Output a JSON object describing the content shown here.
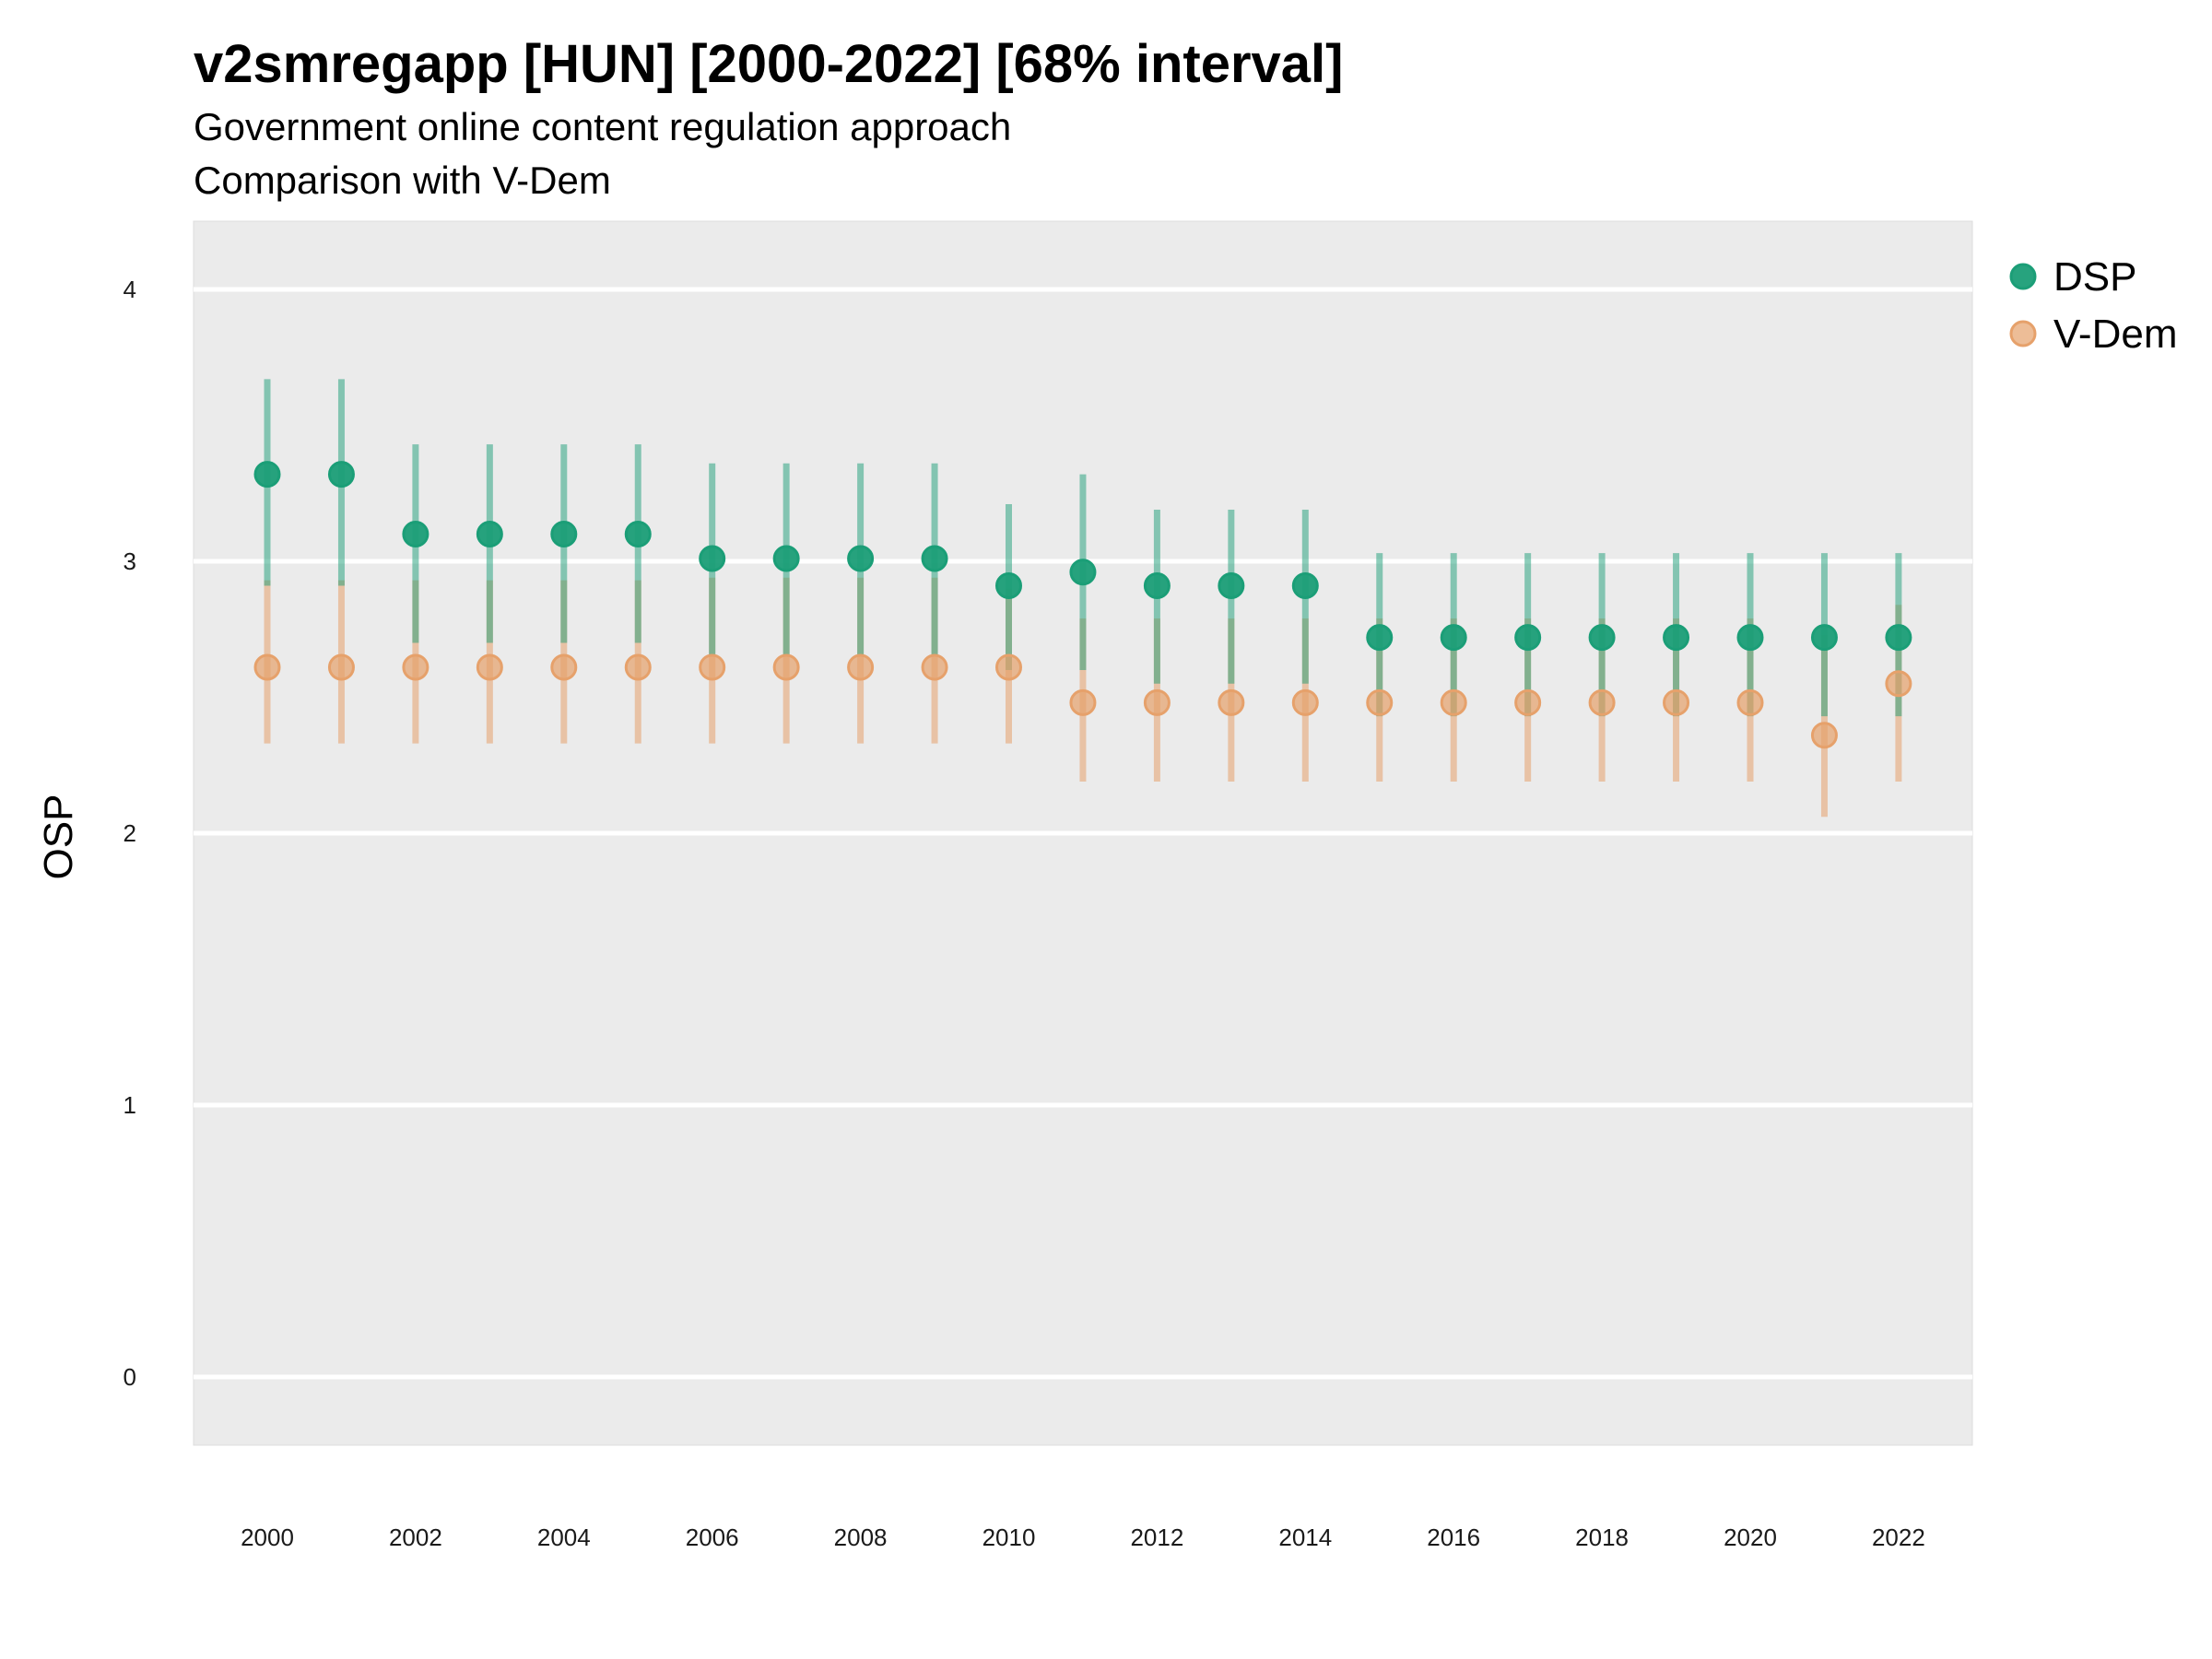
{
  "chart_data": {
    "type": "scatter",
    "title": "v2smregapp [HUN] [2000-2022] [68% interval]",
    "subtitle": "Government online content regulation approach",
    "subtitle2": "Comparison with V-Dem",
    "xlabel": "",
    "ylabel": "OSP",
    "ylim": [
      -0.25,
      4.25
    ],
    "yticks": [
      0,
      1,
      2,
      3,
      4
    ],
    "xticks": [
      2000,
      2002,
      2004,
      2006,
      2008,
      2010,
      2012,
      2014,
      2016,
      2018,
      2020,
      2022
    ],
    "grid": true,
    "legend_position": "right",
    "x": [
      2000,
      2001,
      2002,
      2003,
      2004,
      2005,
      2006,
      2007,
      2008,
      2009,
      2010,
      2011,
      2012,
      2013,
      2014,
      2015,
      2016,
      2017,
      2018,
      2019,
      2020,
      2021,
      2022
    ],
    "series": [
      {
        "name": "DSP",
        "color": "#1b9e77",
        "values": [
          3.32,
          3.32,
          3.1,
          3.1,
          3.1,
          3.1,
          3.01,
          3.01,
          3.01,
          3.01,
          2.91,
          2.96,
          2.91,
          2.91,
          2.91,
          2.72,
          2.72,
          2.72,
          2.72,
          2.72,
          2.72,
          2.72,
          2.72
        ],
        "lower": [
          2.91,
          2.91,
          2.7,
          2.7,
          2.7,
          2.7,
          2.65,
          2.65,
          2.65,
          2.65,
          2.6,
          2.6,
          2.55,
          2.55,
          2.55,
          2.43,
          2.43,
          2.43,
          2.43,
          2.43,
          2.43,
          2.43,
          2.43
        ],
        "upper": [
          3.67,
          3.67,
          3.43,
          3.43,
          3.43,
          3.43,
          3.36,
          3.36,
          3.36,
          3.36,
          3.21,
          3.32,
          3.19,
          3.19,
          3.19,
          3.03,
          3.03,
          3.03,
          3.03,
          3.03,
          3.03,
          3.03,
          3.03
        ]
      },
      {
        "name": "V-Dem",
        "color": "#e6a16b",
        "values": [
          2.61,
          2.61,
          2.61,
          2.61,
          2.61,
          2.61,
          2.61,
          2.61,
          2.61,
          2.61,
          2.61,
          2.48,
          2.48,
          2.48,
          2.48,
          2.48,
          2.48,
          2.48,
          2.48,
          2.48,
          2.48,
          2.36,
          2.55
        ],
        "lower": [
          2.33,
          2.33,
          2.33,
          2.33,
          2.33,
          2.33,
          2.33,
          2.33,
          2.33,
          2.33,
          2.33,
          2.19,
          2.19,
          2.19,
          2.19,
          2.19,
          2.19,
          2.19,
          2.19,
          2.19,
          2.19,
          2.06,
          2.19
        ],
        "upper": [
          2.93,
          2.93,
          2.93,
          2.93,
          2.93,
          2.93,
          2.94,
          2.94,
          2.94,
          2.94,
          2.9,
          2.79,
          2.79,
          2.79,
          2.79,
          2.79,
          2.79,
          2.79,
          2.79,
          2.79,
          2.79,
          2.73,
          2.84
        ]
      }
    ]
  }
}
